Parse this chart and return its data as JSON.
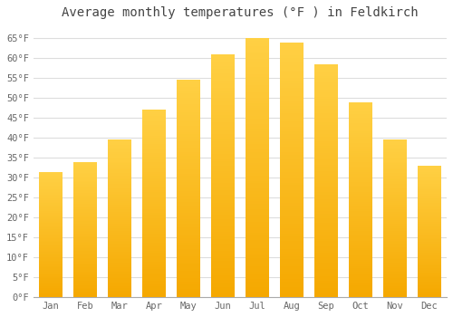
{
  "title": "Average monthly temperatures (°F ) in Feldkirch",
  "months": [
    "Jan",
    "Feb",
    "Mar",
    "Apr",
    "May",
    "Jun",
    "Jul",
    "Aug",
    "Sep",
    "Oct",
    "Nov",
    "Dec"
  ],
  "values": [
    31.5,
    34.0,
    39.5,
    47.0,
    54.5,
    61.0,
    65.0,
    64.0,
    58.5,
    49.0,
    39.5,
    33.0
  ],
  "bar_color_top": "#FFD044",
  "bar_color_bottom": "#F5A800",
  "ylim": [
    0,
    68
  ],
  "yticks": [
    0,
    5,
    10,
    15,
    20,
    25,
    30,
    35,
    40,
    45,
    50,
    55,
    60,
    65
  ],
  "background_color": "#FFFFFF",
  "plot_bg_color": "#FFFFFF",
  "grid_color": "#DDDDDD",
  "title_fontsize": 10,
  "tick_fontsize": 7.5,
  "title_color": "#444444",
  "tick_color": "#666666"
}
